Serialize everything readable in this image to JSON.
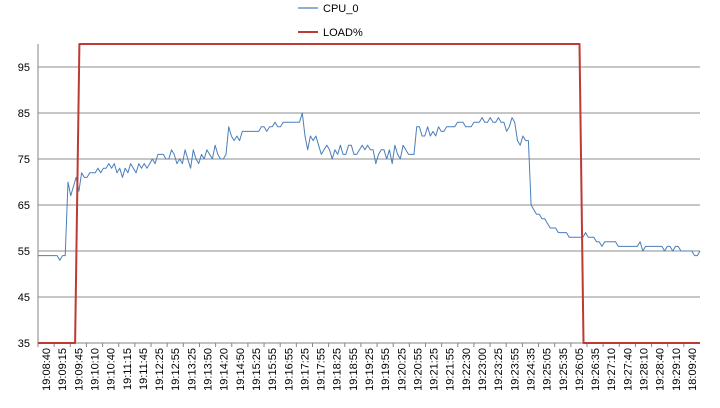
{
  "chart_data": {
    "type": "line",
    "title": "",
    "xlabel": "",
    "ylabel": "",
    "ylim": [
      35,
      100
    ],
    "y_ticks": [
      35,
      45,
      55,
      65,
      75,
      85,
      95
    ],
    "grid": "horizontal",
    "legend_placement": "top-center",
    "x_labels": [
      "19:08:40",
      "19:09:15",
      "19:09:45",
      "19:10:10",
      "19:10:40",
      "19:11:15",
      "19:11:45",
      "19:12:25",
      "19:12:55",
      "19:13:25",
      "19:13:50",
      "19:14:20",
      "19:14:50",
      "19:15:25",
      "19:15:55",
      "19:16:55",
      "19:17:25",
      "19:17:55",
      "19:18:25",
      "19:18:55",
      "19:19:25",
      "19:19:55",
      "19:20:25",
      "19:20:55",
      "19:21:25",
      "19:21:55",
      "19:22:30",
      "19:23:00",
      "19:23:25",
      "19:23:55",
      "19:24:35",
      "19:25:05",
      "19:25:35",
      "19:26:05",
      "19:26:35",
      "19:27:10",
      "19:27:40",
      "19:28:10",
      "19:28:40",
      "19:29:10",
      "18:09:40"
    ],
    "series": [
      {
        "name": "CPU_0",
        "color": "#4a7ebb",
        "values": [
          54,
          54,
          54,
          54,
          54,
          54,
          54,
          54,
          53,
          54,
          54,
          70,
          67,
          69,
          71,
          68,
          72,
          71,
          71,
          72,
          72,
          72,
          73,
          72,
          73,
          73,
          74,
          73,
          74,
          72,
          73,
          71,
          73,
          72,
          74,
          73,
          72,
          74,
          73,
          74,
          73,
          74,
          75,
          74,
          76,
          76,
          76,
          75,
          75,
          77,
          76,
          74,
          75,
          74,
          77,
          75,
          73,
          77,
          75,
          74,
          76,
          75,
          77,
          76,
          75,
          78,
          76,
          75,
          75,
          76,
          82,
          80,
          79,
          80,
          79,
          81,
          81,
          81,
          81,
          81,
          81,
          81,
          82,
          82,
          81,
          82,
          82,
          83,
          82,
          82,
          83,
          83,
          83,
          83,
          83,
          83,
          83,
          85,
          80,
          77,
          80,
          79,
          80,
          78,
          76,
          77,
          78,
          77,
          75,
          77,
          76,
          78,
          76,
          76,
          78,
          78,
          76,
          76,
          77,
          78,
          77,
          78,
          77,
          77,
          74,
          76,
          77,
          77,
          75,
          77,
          74,
          78,
          76,
          75,
          78,
          77,
          76,
          76,
          76,
          82,
          82,
          80,
          80,
          82,
          80,
          81,
          80,
          82,
          81,
          81,
          82,
          82,
          82,
          82,
          83,
          83,
          83,
          82,
          82,
          82,
          83,
          83,
          83,
          84,
          83,
          83,
          84,
          83,
          83,
          84,
          83,
          83,
          81,
          82,
          84,
          83,
          79,
          78,
          80,
          79,
          79,
          65,
          64,
          63,
          63,
          62,
          62,
          61,
          60,
          60,
          60,
          59,
          59,
          59,
          59,
          58,
          58,
          58,
          58,
          58,
          58,
          59,
          58,
          58,
          58,
          57,
          57,
          56,
          57,
          57,
          57,
          57,
          57,
          56,
          56,
          56,
          56,
          56,
          56,
          56,
          56,
          57,
          55,
          56,
          56,
          56,
          56,
          56,
          56,
          56,
          55,
          56,
          56,
          55,
          56,
          56,
          55,
          55,
          55,
          55,
          55,
          54,
          54,
          55
        ]
      },
      {
        "name": "LOAD%",
        "color": "#be3a34",
        "shape": [
          [
            0,
            35
          ],
          [
            0.056,
            35
          ],
          [
            0.0625,
            100
          ],
          [
            0.818,
            100
          ],
          [
            0.824,
            35
          ],
          [
            1,
            35
          ]
        ]
      }
    ]
  }
}
